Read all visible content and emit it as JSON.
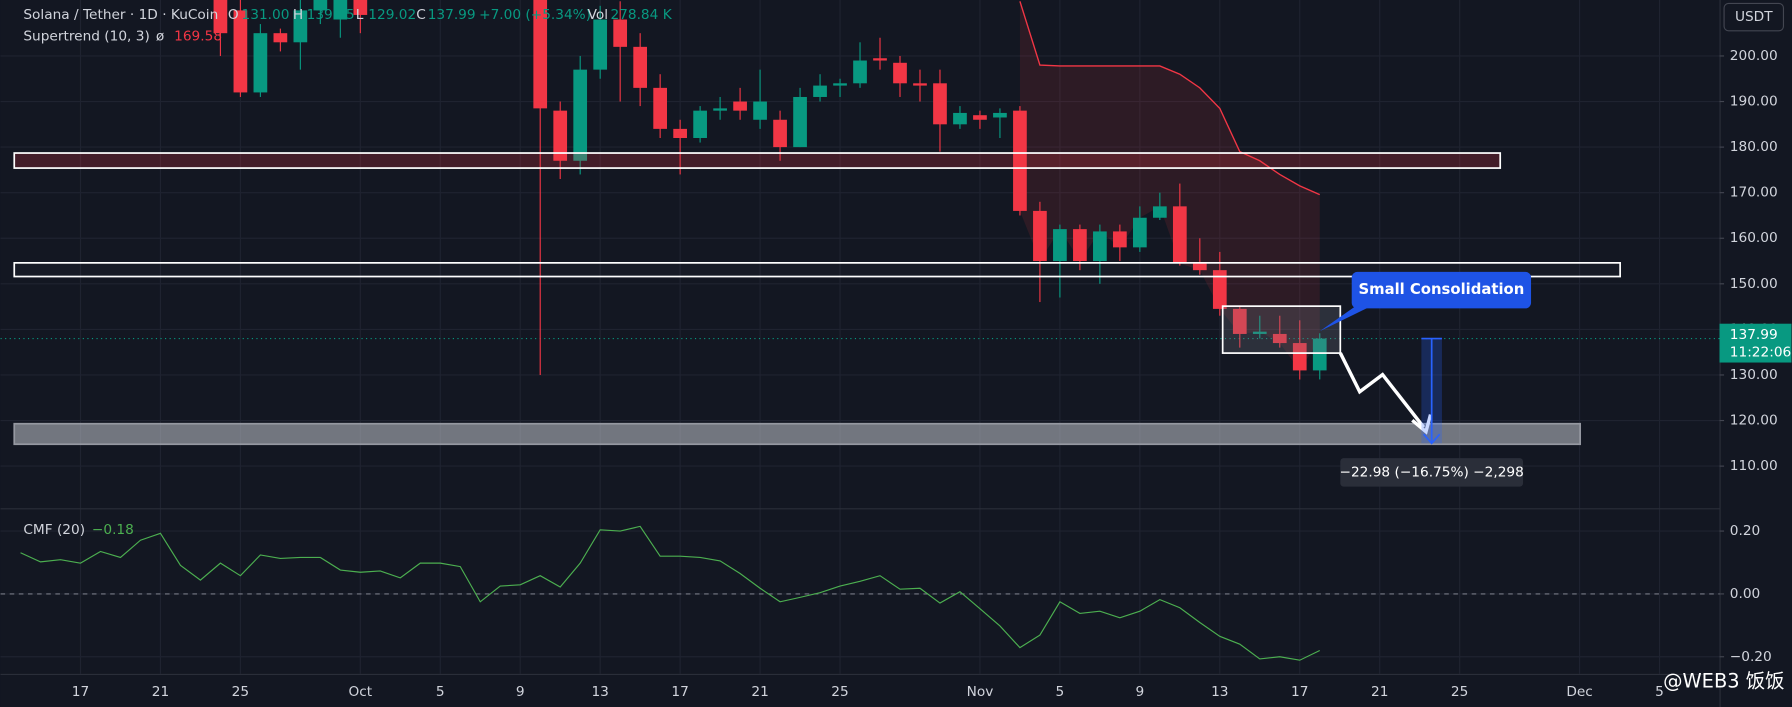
{
  "chart_data": [
    {
      "type": "candlestick",
      "title": "Solana / Tether · 1D · KuCoin",
      "header": {
        "open_key": "O",
        "open": "131.00",
        "high_key": "H",
        "high": "139.15",
        "low_key": "L",
        "low": "129.02",
        "close_key": "C",
        "close": "137.99",
        "change": "+7.00 (+5.34%)",
        "volume_key": "Vol",
        "volume": "278.84 K"
      },
      "indicator": {
        "name": "Supertrend (10, 3)",
        "symbol": "ø",
        "value": "169.58",
        "color": "#f23645"
      },
      "currency": "USDT",
      "price_tag": {
        "label": "137.99",
        "countdown": "11:22:06"
      },
      "annotation": "Small Consolidation",
      "measure": {
        "from": 137.99,
        "change": -22.98,
        "label": "−22.98 (−16.75%) −2,298"
      },
      "watermark": "@WEB3 饭饭",
      "up_color": "#089981",
      "down_color": "#f23645",
      "categories": [
        null,
        null,
        null,
        null,
        "17",
        null,
        null,
        null,
        "21",
        null,
        null,
        null,
        "25",
        null,
        null,
        null,
        null,
        null,
        "Oct",
        null,
        null,
        null,
        "5",
        null,
        null,
        null,
        "9",
        null,
        null,
        null,
        "13",
        null,
        null,
        null,
        "17",
        null,
        null,
        null,
        "21",
        null,
        null,
        null,
        "25",
        null,
        null,
        null,
        null,
        null,
        null,
        "Nov",
        null,
        null,
        null,
        "5",
        null,
        null,
        null,
        "9",
        null,
        null,
        null,
        "13",
        null,
        null,
        null,
        "17",
        null,
        null,
        null,
        "21",
        null,
        null,
        null,
        "25",
        null,
        null,
        null,
        null,
        null,
        "Dec",
        null,
        null,
        null,
        "5",
        null
      ],
      "open": [
        null,
        null,
        null,
        null,
        null,
        null,
        null,
        null,
        null,
        null,
        null,
        215,
        210,
        192,
        205,
        203,
        210,
        208,
        213,
        null,
        null,
        null,
        null,
        null,
        null,
        null,
        null,
        214,
        188,
        177,
        197,
        208,
        202,
        193,
        184,
        182,
        188,
        190,
        186,
        186,
        180,
        191,
        193.5,
        194,
        199.5,
        198.5,
        194,
        194,
        185,
        187,
        186.5,
        188,
        166,
        155,
        162,
        155,
        161.5,
        158,
        164.5,
        167,
        154.5,
        153,
        144.5,
        139,
        139,
        137,
        131,
        null,
        null,
        null,
        null,
        null,
        null,
        null,
        null,
        null,
        null,
        null,
        null,
        null,
        null,
        null,
        null,
        null,
        null
      ],
      "high": [
        null,
        null,
        null,
        null,
        null,
        null,
        null,
        null,
        null,
        null,
        null,
        218,
        213,
        207,
        206,
        214,
        216,
        216,
        215,
        null,
        null,
        null,
        null,
        null,
        null,
        null,
        null,
        216,
        190,
        200,
        211,
        212,
        205,
        196,
        186,
        189,
        191,
        193,
        197,
        188,
        193,
        196,
        195,
        203,
        204,
        200,
        197,
        197,
        189,
        188,
        188.5,
        189,
        168,
        163,
        163,
        163,
        163,
        167,
        170,
        172,
        160,
        157,
        145,
        143,
        143,
        142,
        139.15,
        null,
        null,
        null,
        null,
        null,
        null,
        null,
        null,
        null,
        null,
        null,
        null,
        null,
        null,
        null,
        null,
        null,
        null
      ],
      "low": [
        null,
        null,
        null,
        null,
        null,
        null,
        null,
        null,
        null,
        null,
        null,
        200,
        191,
        191,
        201,
        197,
        207,
        204,
        205,
        null,
        null,
        null,
        null,
        null,
        null,
        null,
        null,
        130,
        173,
        174,
        195,
        190,
        189,
        182,
        174,
        181,
        186,
        186,
        184,
        177,
        180,
        190,
        191,
        193,
        197,
        191,
        190,
        179,
        184,
        184,
        182,
        165,
        146,
        147,
        153,
        150,
        155,
        157,
        164,
        154,
        152,
        143,
        136,
        138,
        136,
        129,
        129.02,
        null,
        null,
        null,
        null,
        null,
        null,
        null,
        null,
        null,
        null,
        null,
        null,
        null,
        null,
        null,
        null,
        null,
        null
      ],
      "close": [
        null,
        null,
        null,
        null,
        null,
        null,
        null,
        null,
        null,
        null,
        null,
        205,
        192,
        205,
        203,
        210,
        213,
        213,
        209,
        null,
        null,
        null,
        null,
        null,
        null,
        null,
        null,
        188.5,
        177,
        197,
        208,
        202,
        193,
        184,
        182,
        188,
        188.5,
        188,
        190,
        180,
        191,
        193.5,
        194,
        199,
        199,
        194,
        193.5,
        185,
        187.5,
        186,
        187.5,
        166,
        155,
        162,
        155,
        161.5,
        158,
        164.5,
        167,
        154.5,
        153,
        144.5,
        139,
        139.5,
        137,
        131,
        137.99,
        null,
        null,
        null,
        null,
        null,
        null,
        null,
        null,
        null,
        null,
        null,
        null,
        null,
        null,
        null,
        null,
        null,
        null
      ],
      "supertrend": [
        null,
        null,
        null,
        null,
        null,
        null,
        null,
        null,
        null,
        null,
        null,
        null,
        null,
        null,
        null,
        null,
        null,
        null,
        null,
        null,
        null,
        null,
        null,
        null,
        null,
        null,
        null,
        null,
        null,
        null,
        null,
        null,
        null,
        null,
        null,
        null,
        null,
        null,
        null,
        null,
        null,
        null,
        null,
        null,
        null,
        null,
        null,
        null,
        null,
        null,
        null,
        212,
        198,
        197.8,
        197.8,
        197.8,
        197.8,
        197.8,
        197.8,
        196,
        193,
        188.5,
        179,
        177,
        174,
        171.5,
        169.58,
        null,
        null,
        null,
        null,
        null,
        null,
        null,
        null,
        null,
        null,
        null,
        null,
        null,
        null,
        null,
        null,
        null,
        null
      ],
      "zones": [
        {
          "low": 175.4,
          "high": 178.7
        },
        {
          "low": 151.6,
          "high": 154.6
        },
        {
          "low": 114.8,
          "high": 119.3
        },
        {
          "low": 134.8,
          "high": 145.1
        }
      ],
      "ylim": [
        100.75,
        212.28
      ],
      "yticks": [
        {
          "value": 110,
          "label": "110.00"
        },
        {
          "value": 120,
          "label": "120.00"
        },
        {
          "value": 130,
          "label": "130.00"
        },
        {
          "value": 140,
          "label": "140.00"
        },
        {
          "value": 150,
          "label": "150.00"
        },
        {
          "value": 160,
          "label": "160.00"
        },
        {
          "value": 170,
          "label": "170.00"
        },
        {
          "value": 180,
          "label": "180.00"
        },
        {
          "value": 190,
          "label": "190.00"
        },
        {
          "value": 200,
          "label": "200.00"
        }
      ],
      "grid": true
    },
    {
      "type": "line",
      "title": "CMF (20)",
      "value_label": "−0.18",
      "color": "#4caf50",
      "values": [
        null,
        0.131,
        0.102,
        0.109,
        0.098,
        0.135,
        0.116,
        0.171,
        0.193,
        0.091,
        0.044,
        0.098,
        0.058,
        0.124,
        0.113,
        0.116,
        0.116,
        0.076,
        0.069,
        0.073,
        0.051,
        0.098,
        0.098,
        0.087,
        -0.025,
        0.025,
        0.029,
        0.058,
        0.022,
        0.098,
        0.204,
        0.2,
        0.215,
        0.12,
        0.12,
        0.116,
        0.105,
        0.065,
        0.018,
        -0.025,
        -0.011,
        0.004,
        0.025,
        0.04,
        0.058,
        0.015,
        0.018,
        -0.029,
        0.007,
        -0.047,
        -0.102,
        -0.171,
        -0.131,
        -0.025,
        -0.062,
        -0.055,
        -0.076,
        -0.055,
        -0.018,
        -0.044,
        -0.091,
        -0.135,
        -0.16,
        -0.207,
        -0.2,
        -0.211,
        -0.18,
        null,
        null,
        null,
        null,
        null,
        null,
        null,
        null,
        null,
        null,
        null,
        null,
        null,
        null,
        null,
        null,
        null,
        null
      ],
      "ylim": [
        -0.2545,
        0.269
      ],
      "yticks": [
        {
          "value": 0.2,
          "label": "0.20"
        },
        {
          "value": 0,
          "label": "0.00"
        },
        {
          "value": -0.2,
          "label": "−0.20"
        }
      ],
      "grid": true
    }
  ]
}
